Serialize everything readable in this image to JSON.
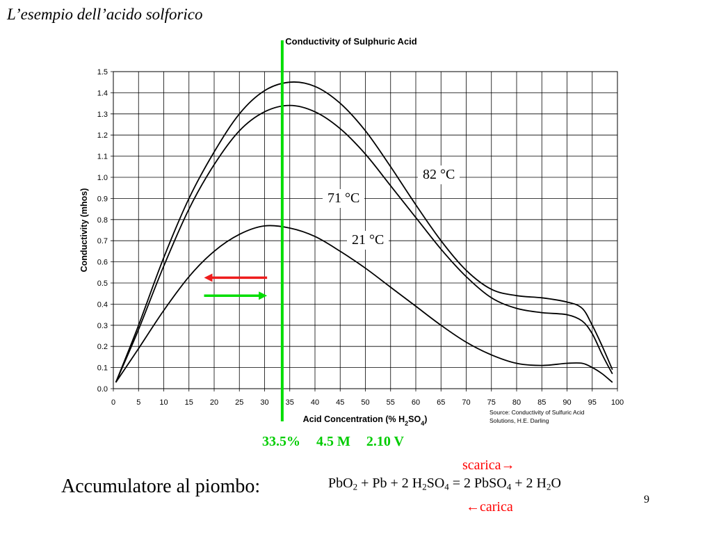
{
  "slide": {
    "title": "L’esempio dell’acido solforico",
    "page_number": "9"
  },
  "chart_data": {
    "type": "line",
    "title": "Conductivity of Sulphuric Acid",
    "xlabel": "Acid Concentration (% H₂SO₄)",
    "ylabel": "Conductivity (mhos)",
    "xlim": [
      0,
      100
    ],
    "ylim": [
      0.0,
      1.5
    ],
    "x_ticks": [
      "0",
      "5",
      "10",
      "15",
      "20",
      "25",
      "30",
      "35",
      "40",
      "45",
      "50",
      "55",
      "60",
      "65",
      "70",
      "75",
      "80",
      "85",
      "90",
      "95",
      "100"
    ],
    "y_ticks": [
      "0.0",
      "0.1",
      "0.2",
      "0.3",
      "0.4",
      "0.5",
      "0.6",
      "0.7",
      "0.8",
      "0.9",
      "1.0",
      "1.1",
      "1.2",
      "1.3",
      "1.4",
      "1.5"
    ],
    "grid": true,
    "source_lines": [
      "Source: Conductivity of Sulfuric Acid",
      "Solutions, H.E. Darling"
    ],
    "series": [
      {
        "name": "82 °C",
        "x": [
          0.5,
          5,
          10,
          15,
          20,
          25,
          30,
          35,
          40,
          45,
          50,
          55,
          60,
          65,
          70,
          75,
          80,
          85,
          90,
          93,
          95,
          97,
          99
        ],
        "y": [
          0.03,
          0.3,
          0.62,
          0.9,
          1.12,
          1.3,
          1.41,
          1.45,
          1.43,
          1.35,
          1.22,
          1.05,
          0.87,
          0.7,
          0.56,
          0.47,
          0.44,
          0.43,
          0.41,
          0.38,
          0.3,
          0.2,
          0.09
        ]
      },
      {
        "name": "71 °C",
        "x": [
          0.5,
          5,
          10,
          15,
          20,
          25,
          30,
          35,
          40,
          45,
          50,
          55,
          60,
          65,
          70,
          75,
          80,
          85,
          90,
          93,
          95,
          97,
          99
        ],
        "y": [
          0.03,
          0.28,
          0.58,
          0.85,
          1.06,
          1.22,
          1.31,
          1.34,
          1.31,
          1.23,
          1.11,
          0.96,
          0.81,
          0.66,
          0.53,
          0.43,
          0.38,
          0.36,
          0.35,
          0.32,
          0.26,
          0.16,
          0.07
        ]
      },
      {
        "name": "21 °C",
        "x": [
          0.5,
          5,
          10,
          15,
          20,
          25,
          30,
          35,
          40,
          45,
          50,
          55,
          60,
          65,
          70,
          75,
          80,
          85,
          90,
          93,
          95,
          97,
          99
        ],
        "y": [
          0.03,
          0.19,
          0.37,
          0.53,
          0.65,
          0.73,
          0.77,
          0.76,
          0.72,
          0.65,
          0.57,
          0.48,
          0.39,
          0.3,
          0.22,
          0.16,
          0.12,
          0.11,
          0.12,
          0.12,
          0.1,
          0.07,
          0.03
        ]
      }
    ],
    "marker_line_x": 33.5,
    "marker_line_color": "#00dd00",
    "arrows": [
      {
        "name": "charge-direction-arrow",
        "direction": "left",
        "color": "#ee1c1c",
        "x_from": 30.5,
        "x_to": 18,
        "y": 0.525
      },
      {
        "name": "discharge-direction-arrow",
        "direction": "right",
        "color": "#00dd00",
        "x_from": 18,
        "x_to": 30.5,
        "y": 0.44
      }
    ]
  },
  "annotations": {
    "green_note": {
      "percent": "33.5%",
      "molarity": "4.5 M",
      "voltage": "2.10 V"
    },
    "battery_label": "Accumulatore al piombo:",
    "reaction": {
      "pbo2": "PbO",
      "pbo2_sub": "2",
      "plus_pb": " + Pb + 2 H",
      "h2so4_sub1": "2",
      "so": "SO",
      "so_sub": "4",
      "equals": " = 2 PbSO",
      "pbso4_sub": "4",
      "plus_water": " + 2 H",
      "water_sub": "2",
      "o": "O"
    },
    "discharge_label": "scarica→",
    "charge_label": "←carica"
  }
}
